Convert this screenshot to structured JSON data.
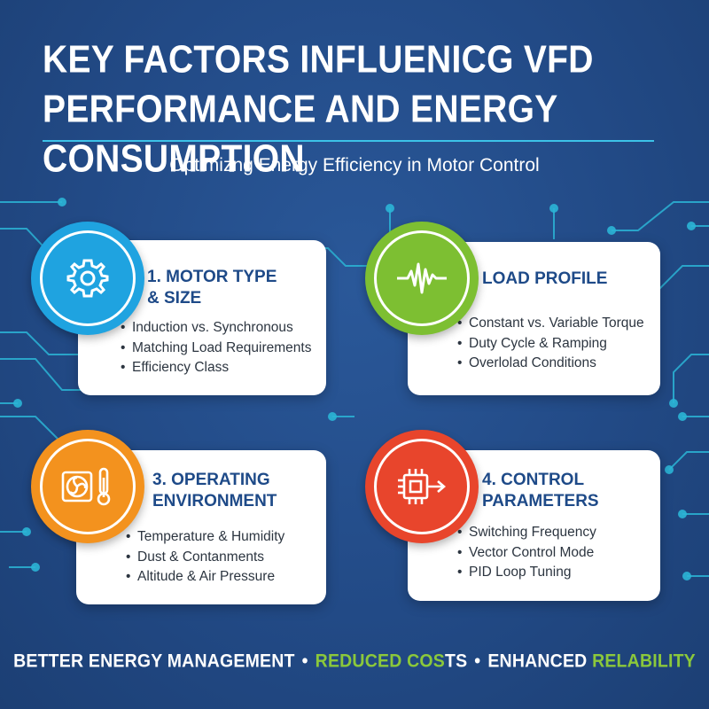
{
  "header": {
    "title_line1": "KEY FACTORS INFLUENICG VFD",
    "title_line2": "PERFORMANCE AND ENERGY CONSUMPTION",
    "subtitle": "Optimizng Energy Efficiency in Motor Control"
  },
  "cards": [
    {
      "title_line1": "1. MOTOR TYPE",
      "title_line2": "& SIZE",
      "icon": "gear-icon",
      "color": "#1fa3e0",
      "bullets": [
        "Induction vs. Synchronous",
        "Matching Load Requirements",
        "Efficiency Class"
      ]
    },
    {
      "title_line1": "LOAD PROFILE",
      "title_line2": "",
      "icon": "waveform-icon",
      "color": "#7dbf32",
      "bullets": [
        "Constant vs. Variable Torque",
        "Duty Cycle & Ramping",
        "Overlolad Conditions"
      ]
    },
    {
      "title_line1": "3. OPERATING",
      "title_line2": "ENVIRONMENT",
      "icon": "fan-thermometer-icon",
      "color": "#f3921e",
      "bullets": [
        "Temperature & Humidity",
        "Dust & Contanments",
        "Altitude & Air Pressure"
      ]
    },
    {
      "title_line1": "4. CONTROL",
      "title_line2": "PARAMETERS",
      "icon": "chip-icon",
      "color": "#e8452c",
      "bullets": [
        "Switching Frequency",
        "Vector Control Mode",
        "PID Loop Tuning"
      ]
    }
  ],
  "footer": {
    "part1": "BETTER ENERGY MANAGEMENT",
    "separator": "•",
    "part2": "REDUCED COS",
    "part3": "TS",
    "part4": "ENHANCED ",
    "part5": "RELABILITY"
  },
  "colors": {
    "background": "#224a86",
    "accent_cyan": "#3cc3e8",
    "accent_green": "#8bc83b",
    "card_title": "#1e4a88"
  }
}
